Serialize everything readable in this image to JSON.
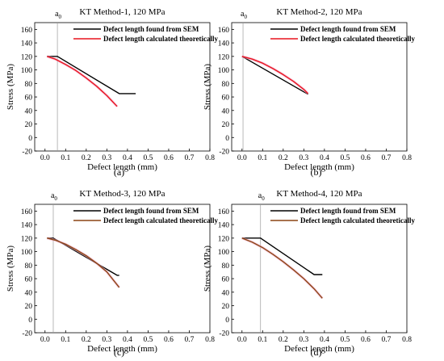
{
  "chart_data": [
    {
      "type": "line",
      "title": "KT Method-1, 120 MPa",
      "xlabel": "Defect length (mm)",
      "ylabel": "Stress (MPa)",
      "xlim": [
        -0.05,
        0.8
      ],
      "ylim": [
        -20,
        170
      ],
      "xticks": [
        "0.0",
        "0.1",
        "0.2",
        "0.3",
        "0.4",
        "0.5",
        "0.6",
        "0.7",
        "0.8"
      ],
      "yticks": [
        "-20",
        "0",
        "20",
        "40",
        "60",
        "80",
        "100",
        "120",
        "140",
        "160"
      ],
      "marker_label": "a0",
      "marker_x": 0.06,
      "panel_label": "(a)",
      "legend_position": "top-right",
      "series": [
        {
          "name": "Defect length found from SEM",
          "color": "#000000",
          "x": [
            0.01,
            0.06,
            0.36,
            0.44
          ],
          "y": [
            120,
            120,
            65,
            65
          ]
        },
        {
          "name": "Defect length calculated theoretically",
          "color": "#e8141e",
          "x": [
            0.01,
            0.05,
            0.1,
            0.15,
            0.2,
            0.25,
            0.3,
            0.35
          ],
          "y": [
            120,
            116,
            108,
            99,
            88,
            76,
            62,
            46
          ]
        }
      ]
    },
    {
      "type": "line",
      "title": "KT Method-2, 120 MPa",
      "xlabel": "Defect length (mm)",
      "ylabel": "Stress (MPa)",
      "xlim": [
        -0.05,
        0.8
      ],
      "ylim": [
        -20,
        170
      ],
      "xticks": [
        "0.0",
        "0.1",
        "0.2",
        "0.3",
        "0.4",
        "0.5",
        "0.6",
        "0.7",
        "0.8"
      ],
      "yticks": [
        "-20",
        "0",
        "20",
        "40",
        "60",
        "80",
        "100",
        "120",
        "140",
        "160"
      ],
      "marker_label": "a0",
      "marker_x": 0.005,
      "panel_label": "(b)",
      "legend_position": "top-right",
      "series": [
        {
          "name": "Defect length found from SEM",
          "color": "#000000",
          "x": [
            0.0,
            0.32
          ],
          "y": [
            120,
            64
          ]
        },
        {
          "name": "Defect length calculated theoretically",
          "color": "#e8141e",
          "x": [
            0.0,
            0.05,
            0.1,
            0.15,
            0.2,
            0.25,
            0.3,
            0.32
          ],
          "y": [
            120,
            116,
            110,
            102,
            93,
            83,
            71,
            65
          ]
        }
      ]
    },
    {
      "type": "line",
      "title": "KT Method-3, 120 MPa",
      "xlabel": "Defect length (mm)",
      "ylabel": "Stress (MPa)",
      "xlim": [
        -0.05,
        0.8
      ],
      "ylim": [
        -20,
        170
      ],
      "xticks": [
        "0.0",
        "0.1",
        "0.2",
        "0.3",
        "0.4",
        "0.5",
        "0.6",
        "0.7",
        "0.8"
      ],
      "yticks": [
        "-20",
        "0",
        "20",
        "40",
        "60",
        "80",
        "100",
        "120",
        "140",
        "160"
      ],
      "marker_label": "a0",
      "marker_x": 0.04,
      "panel_label": "(c)",
      "legend_position": "top-right",
      "series": [
        {
          "name": "Defect length found from SEM",
          "color": "#000000",
          "x": [
            0.01,
            0.04,
            0.35,
            0.36
          ],
          "y": [
            120,
            120,
            65,
            65
          ]
        },
        {
          "name": "Defect length calculated theoretically",
          "color": "#8b4513",
          "x": [
            0.01,
            0.05,
            0.1,
            0.15,
            0.2,
            0.25,
            0.3,
            0.36
          ],
          "y": [
            120,
            117,
            111,
            103,
            94,
            83,
            70,
            47
          ]
        }
      ]
    },
    {
      "type": "line",
      "title": "KT Method-4, 120 MPa",
      "xlabel": "Defect length (mm)",
      "ylabel": "Stress (MPa)",
      "xlim": [
        -0.05,
        0.8
      ],
      "ylim": [
        -20,
        170
      ],
      "xticks": [
        "0.0",
        "0.1",
        "0.2",
        "0.3",
        "0.4",
        "0.5",
        "0.6",
        "0.7",
        "0.8"
      ],
      "yticks": [
        "-20",
        "0",
        "20",
        "40",
        "60",
        "80",
        "100",
        "120",
        "140",
        "160"
      ],
      "marker_label": "a0",
      "marker_x": 0.09,
      "panel_label": "(d)",
      "legend_position": "top-right",
      "series": [
        {
          "name": "Defect length found from SEM",
          "color": "#000000",
          "x": [
            0.0,
            0.09,
            0.35,
            0.39
          ],
          "y": [
            120,
            120,
            66,
            66
          ]
        },
        {
          "name": "Defect length calculated theoretically",
          "color": "#8b4513",
          "x": [
            0.0,
            0.05,
            0.1,
            0.15,
            0.2,
            0.25,
            0.3,
            0.35,
            0.39
          ],
          "y": [
            120,
            114,
            106,
            96,
            85,
            73,
            60,
            45,
            31
          ]
        }
      ]
    }
  ]
}
